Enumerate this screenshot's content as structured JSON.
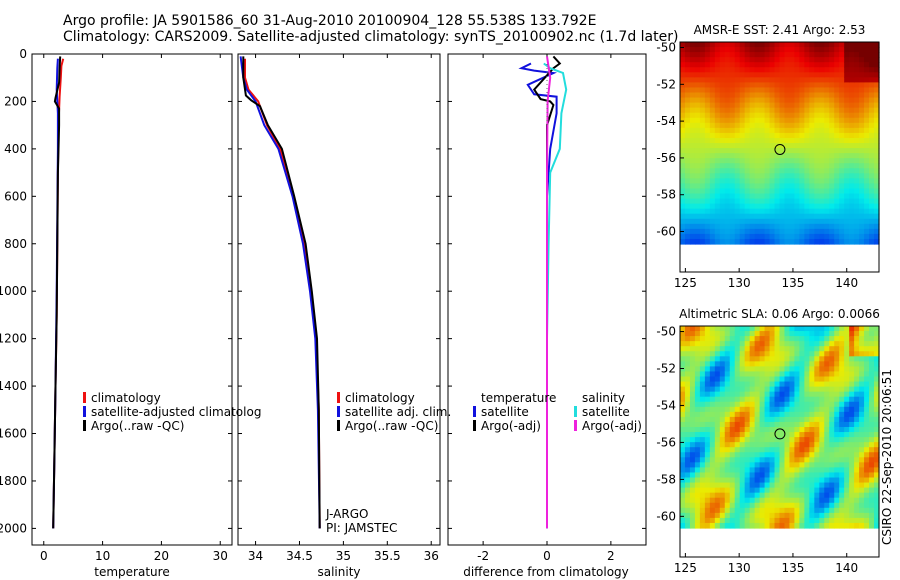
{
  "header": {
    "line1": "Argo profile: JA 5901586_60 31-Aug-2010 20100904_128 55.538S 133.792E",
    "line2": "Climatology: CARS2009. Satellite-adjusted climatology: synTS_20100902.nc (1.7d later)"
  },
  "footer_credit": "CSIRO 22-Sep-2010 20:06:51",
  "colors": {
    "red": "#ee1111",
    "blue": "#1111dd",
    "black": "#000000",
    "cyan": "#22dddd",
    "magenta": "#ee22dd"
  },
  "chart_data": [
    {
      "type": "line",
      "title": "",
      "xlabel": "temperature",
      "ylabel": "",
      "xlim": [
        -2,
        32
      ],
      "ylim": [
        2070,
        0
      ],
      "xticks": [
        "0",
        "10",
        "20",
        "30"
      ],
      "yticks": [
        "0",
        "200",
        "400",
        "600",
        "800",
        "1000",
        "1200",
        "1400",
        "1600",
        "1800",
        "2000"
      ],
      "legend": [
        "climatology",
        "satellite-adjusted climatolog",
        "Argo(..raw -QC)"
      ],
      "series": [
        {
          "name": "climatology",
          "color": "red",
          "points": [
            [
              3.3,
              20
            ],
            [
              3.0,
              50
            ],
            [
              2.9,
              100
            ],
            [
              2.7,
              180
            ],
            [
              2.5,
              300
            ],
            [
              2.4,
              500
            ],
            [
              2.3,
              800
            ],
            [
              2.2,
              1100
            ],
            [
              2.0,
              1400
            ],
            [
              1.8,
              1700
            ],
            [
              1.6,
              2000
            ]
          ]
        },
        {
          "name": "satellite-adjusted climatology",
          "color": "blue",
          "points": [
            [
              2.4,
              20
            ],
            [
              2.3,
              60
            ],
            [
              2.2,
              150
            ],
            [
              2.4,
              250
            ],
            [
              2.4,
              400
            ],
            [
              2.3,
              700
            ],
            [
              2.2,
              1000
            ],
            [
              2.0,
              1400
            ],
            [
              1.8,
              1700
            ],
            [
              1.6,
              2000
            ]
          ]
        },
        {
          "name": "Argo(..raw -QC)",
          "color": "black",
          "points": [
            [
              2.8,
              10
            ],
            [
              2.7,
              60
            ],
            [
              2.6,
              120
            ],
            [
              2.0,
              185
            ],
            [
              1.9,
              200
            ],
            [
              2.6,
              230
            ],
            [
              2.6,
              300
            ],
            [
              2.4,
              500
            ],
            [
              2.3,
              800
            ],
            [
              2.2,
              1100
            ],
            [
              2.0,
              1400
            ],
            [
              1.8,
              1700
            ],
            [
              1.6,
              2000
            ]
          ]
        }
      ]
    },
    {
      "type": "line",
      "title": "",
      "xlabel": "salinity",
      "ylabel": "",
      "xlim": [
        33.8,
        36.1
      ],
      "ylim": [
        2070,
        0
      ],
      "xticks": [
        "34",
        "34.5",
        "35",
        "35.5",
        "36"
      ],
      "legend": [
        "climatology",
        "satellite adj. clim.",
        "Argo(..raw -QC)"
      ],
      "annotations": [
        "J-ARGO",
        "PI: JAMSTEC"
      ],
      "series": [
        {
          "name": "climatology",
          "color": "red",
          "points": [
            [
              33.88,
              20
            ],
            [
              33.88,
              100
            ],
            [
              33.92,
              150
            ],
            [
              34.03,
              200
            ],
            [
              34.13,
              300
            ],
            [
              34.28,
              400
            ],
            [
              34.43,
              600
            ],
            [
              34.55,
              800
            ],
            [
              34.63,
              1000
            ],
            [
              34.69,
              1200
            ],
            [
              34.72,
              1500
            ],
            [
              34.73,
              2000
            ]
          ]
        },
        {
          "name": "satellite adj. clim.",
          "color": "blue",
          "points": [
            [
              33.83,
              10
            ],
            [
              33.86,
              100
            ],
            [
              33.9,
              150
            ],
            [
              34.0,
              200
            ],
            [
              34.1,
              300
            ],
            [
              34.26,
              400
            ],
            [
              34.42,
              600
            ],
            [
              34.54,
              800
            ],
            [
              34.62,
              1000
            ],
            [
              34.68,
              1200
            ],
            [
              34.71,
              1500
            ],
            [
              34.73,
              2000
            ]
          ]
        },
        {
          "name": "Argo(..raw -QC)",
          "color": "black",
          "points": [
            [
              33.86,
              10
            ],
            [
              33.86,
              100
            ],
            [
              33.89,
              175
            ],
            [
              33.95,
              195
            ],
            [
              34.05,
              220
            ],
            [
              34.14,
              300
            ],
            [
              34.3,
              400
            ],
            [
              34.44,
              600
            ],
            [
              34.57,
              800
            ],
            [
              34.64,
              1000
            ],
            [
              34.7,
              1200
            ],
            [
              34.72,
              1500
            ],
            [
              34.73,
              2000
            ]
          ]
        }
      ]
    },
    {
      "type": "line",
      "title": "",
      "xlabel": "difference from climatology",
      "ylabel": "",
      "xlim": [
        -3.1,
        3.1
      ],
      "ylim": [
        2070,
        0
      ],
      "xticks": [
        "-2",
        "0",
        "2"
      ],
      "legend_left_title": "temperature",
      "legend_right_title": "salinity",
      "legend": [
        "satellite",
        "Argo(-adj)",
        "satellite",
        "Argo(-adj)"
      ],
      "series": [
        {
          "name": "temperature satellite",
          "color": "blue",
          "points": [
            [
              -0.5,
              40
            ],
            [
              -0.8,
              60
            ],
            [
              -0.4,
              70
            ],
            [
              0.2,
              80
            ],
            [
              -0.6,
              130
            ],
            [
              -0.4,
              170
            ],
            [
              0.3,
              180
            ],
            [
              0.3,
              250
            ],
            [
              0.1,
              400
            ],
            [
              0.0,
              600
            ],
            [
              0.0,
              1000
            ],
            [
              0.0,
              2000
            ]
          ]
        },
        {
          "name": "temperature Argo(-adj)",
          "color": "black",
          "points": [
            [
              0.2,
              10
            ],
            [
              0.4,
              40
            ],
            [
              0.2,
              60
            ],
            [
              -0.4,
              150
            ],
            [
              -0.2,
              190
            ],
            [
              0.1,
              200
            ],
            [
              0.2,
              215
            ],
            [
              0.0,
              300
            ],
            [
              0.0,
              600
            ],
            [
              0.0,
              2000
            ]
          ]
        },
        {
          "name": "salinity satellite",
          "color": "cyan",
          "points": [
            [
              -0.1,
              40
            ],
            [
              0.1,
              60
            ],
            [
              0.5,
              80
            ],
            [
              0.6,
              150
            ],
            [
              0.45,
              250
            ],
            [
              0.4,
              400
            ],
            [
              0.1,
              500
            ],
            [
              0.05,
              800
            ],
            [
              0.0,
              1200
            ],
            [
              0.0,
              2000
            ]
          ]
        },
        {
          "name": "salinity Argo(-adj)",
          "color": "magenta",
          "points": [
            [
              0.0,
              10
            ],
            [
              0.1,
              100
            ],
            [
              0.02,
              200
            ],
            [
              0.0,
              500
            ],
            [
              0.0,
              2000
            ]
          ]
        }
      ]
    },
    {
      "type": "heatmap",
      "title": "AMSR-E SST: 2.41  Argo: 2.53",
      "xlim": [
        124.5,
        143
      ],
      "ylim": [
        -62.2,
        -49.7
      ],
      "xticks": [
        "125",
        "130",
        "135",
        "140"
      ],
      "yticks": [
        "-50",
        "-52",
        "-54",
        "-56",
        "-58",
        "-60"
      ],
      "marker": [
        133.79,
        -55.54
      ]
    },
    {
      "type": "heatmap",
      "title": "Altimetric SLA: 0.06  Argo: 0.0066",
      "xlim": [
        124.5,
        143
      ],
      "ylim": [
        -62.2,
        -49.7
      ],
      "xticks": [
        "125",
        "130",
        "135",
        "140"
      ],
      "yticks": [
        "-50",
        "-52",
        "-54",
        "-56",
        "-58",
        "-60"
      ],
      "marker": [
        133.79,
        -55.54
      ]
    }
  ]
}
